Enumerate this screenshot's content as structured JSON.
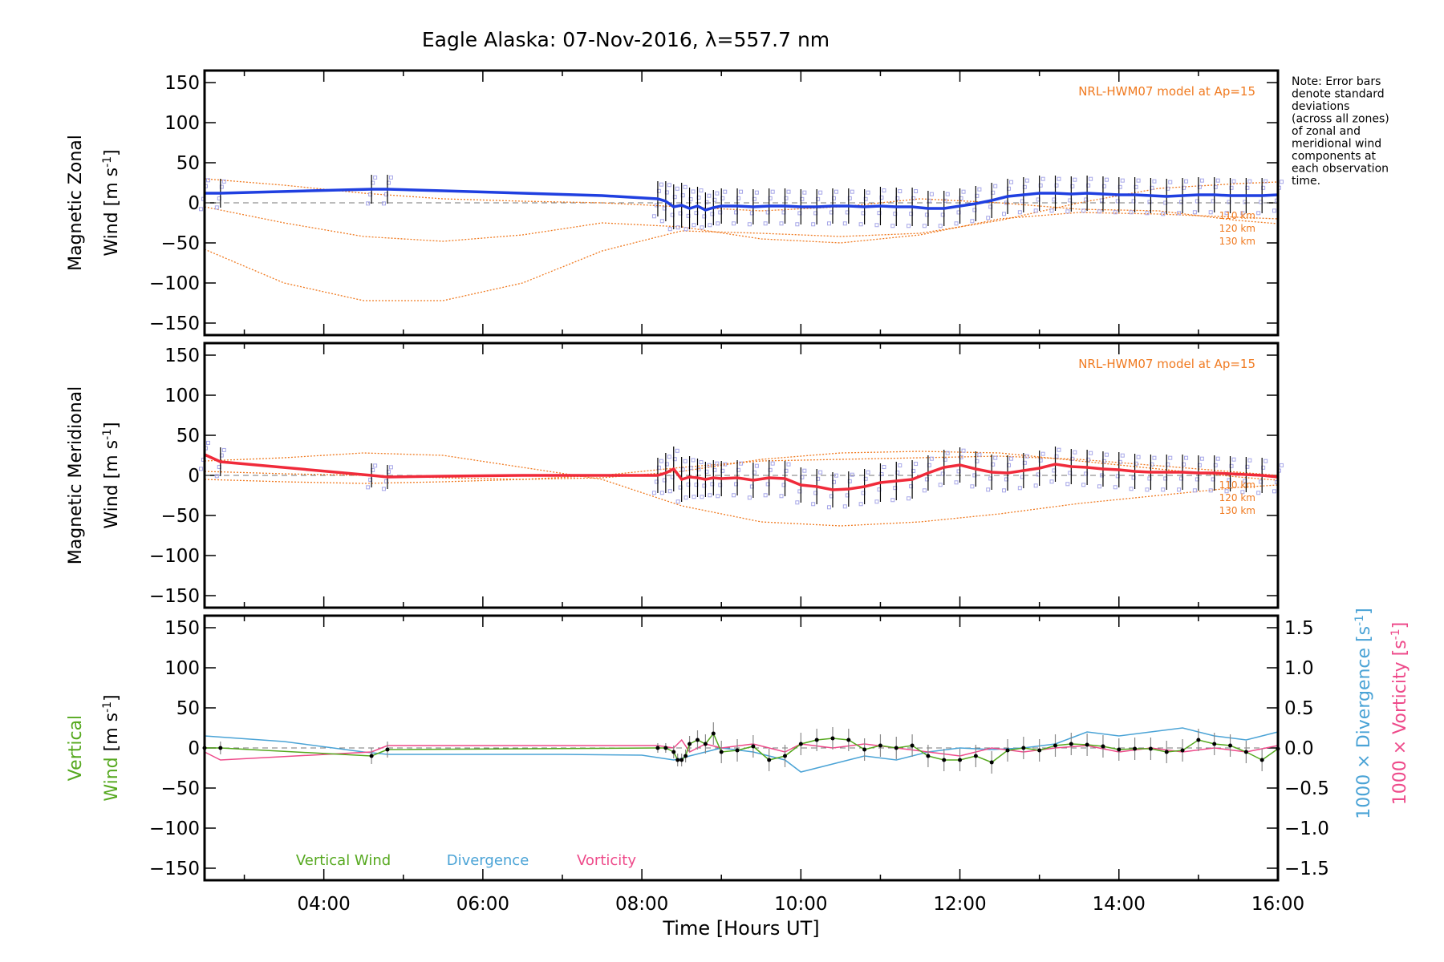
{
  "title": "Eagle Alaska: 07-Nov-2016, λ=557.7 nm",
  "note": [
    "Note: Error bars",
    "denote standard",
    "deviations",
    "(across all zones)",
    "of zonal and",
    "meridional wind",
    "components at",
    "each observation",
    "time."
  ],
  "colors": {
    "zonal": "#1f3fe0",
    "meridional": "#f02a3a",
    "model": "#f07a20",
    "vertical": "#55a81e",
    "divergence": "#4aa3d6",
    "vorticity": "#ee4a8a",
    "samples": "#a6a6e8",
    "errorbar": "#000000"
  },
  "xaxis": {
    "label": "Time [Hours UT]",
    "range": [
      2.5,
      16.0
    ],
    "ticks": [
      4,
      6,
      8,
      10,
      12,
      14,
      16
    ],
    "tick_labels": [
      "04:00",
      "06:00",
      "08:00",
      "10:00",
      "12:00",
      "14:00",
      "16:00"
    ]
  },
  "chart_data": [
    {
      "type": "line",
      "panel": "zonal",
      "ylabel_line1": "Magnetic Zonal",
      "ylabel_line2": "Wind [m s",
      "ylabel_sup": "-1",
      "ylabel_close": "]",
      "ylim": [
        -165,
        165
      ],
      "yticks": [
        -150,
        -100,
        -50,
        0,
        50,
        100,
        150
      ],
      "ytick_labels": [
        "−150",
        "−100",
        "−50",
        "0",
        "50",
        "100",
        "150"
      ],
      "model_label": "NRL-HWM07 model at Ap=15",
      "model_levels": [
        "110 km",
        "120 km",
        "130 km"
      ],
      "series": {
        "x": [
          2.5,
          2.7,
          4.6,
          4.8,
          5.5,
          6.5,
          7.5,
          8.2,
          8.3,
          8.4,
          8.5,
          8.6,
          8.7,
          8.8,
          8.9,
          9.0,
          9.2,
          9.4,
          9.6,
          9.8,
          10.0,
          10.2,
          10.4,
          10.6,
          10.8,
          11.0,
          11.2,
          11.4,
          11.6,
          11.8,
          12.0,
          12.2,
          12.4,
          12.6,
          12.8,
          13.0,
          13.2,
          13.4,
          13.6,
          13.8,
          14.0,
          14.2,
          14.4,
          14.6,
          14.8,
          15.0,
          15.2,
          15.4,
          15.6,
          15.8,
          16.0
        ],
        "y": [
          12,
          12,
          17,
          17,
          15,
          12,
          9,
          5,
          2,
          -5,
          -3,
          -7,
          -4,
          -9,
          -6,
          -4,
          -4,
          -5,
          -4,
          -4,
          -5,
          -5,
          -4,
          -4,
          -5,
          -4,
          -5,
          -5,
          -7,
          -7,
          -4,
          -1,
          3,
          8,
          10,
          12,
          12,
          11,
          12,
          11,
          10,
          10,
          9,
          8,
          9,
          10,
          10,
          9,
          9,
          9,
          10
        ],
        "err": [
          20,
          18,
          18,
          18,
          0,
          0,
          0,
          22,
          25,
          28,
          28,
          26,
          24,
          22,
          22,
          22,
          22,
          22,
          22,
          22,
          22,
          22,
          22,
          22,
          22,
          24,
          24,
          24,
          22,
          22,
          22,
          22,
          22,
          22,
          22,
          22,
          22,
          22,
          22,
          22,
          22,
          22,
          22,
          22,
          22,
          22,
          22,
          22,
          22,
          22,
          20
        ]
      },
      "model": [
        {
          "level": "110 km",
          "x": [
            2.5,
            3.5,
            4.5,
            5.5,
            6.5,
            7.5,
            8.5,
            9.5,
            10.5,
            11.5,
            12.5,
            13.5,
            14.5,
            15.5,
            16.0
          ],
          "y": [
            -58,
            -100,
            -122,
            -122,
            -100,
            -60,
            -35,
            -38,
            -42,
            -38,
            -22,
            0,
            18,
            24,
            26
          ]
        },
        {
          "level": "120 km",
          "x": [
            2.5,
            3.5,
            4.5,
            5.5,
            6.5,
            7.5,
            8.5,
            9.5,
            10.5,
            11.5,
            12.5,
            13.5,
            14.5,
            15.5,
            16.0
          ],
          "y": [
            -5,
            -25,
            -42,
            -48,
            -40,
            -25,
            -30,
            -45,
            -50,
            -40,
            -20,
            -12,
            -14,
            -18,
            -20
          ]
        },
        {
          "level": "130 km",
          "x": [
            2.5,
            3.5,
            4.5,
            5.5,
            6.5,
            7.5,
            8.5,
            9.5,
            10.5,
            11.5,
            12.5,
            13.5,
            14.5,
            15.5,
            16.0
          ],
          "y": [
            30,
            22,
            12,
            5,
            2,
            0,
            -5,
            -10,
            -5,
            5,
            0,
            -8,
            -10,
            -22,
            -26
          ]
        }
      ]
    },
    {
      "type": "line",
      "panel": "meridional",
      "ylabel_line1": "Magnetic Meridional",
      "ylabel_line2": "Wind [m s",
      "ylabel_sup": "-1",
      "ylabel_close": "]",
      "ylim": [
        -165,
        165
      ],
      "yticks": [
        -150,
        -100,
        -50,
        0,
        50,
        100,
        150
      ],
      "ytick_labels": [
        "−150",
        "−100",
        "−50",
        "0",
        "50",
        "100",
        "150"
      ],
      "model_label": "NRL-HWM07 model at Ap=15",
      "model_levels": [
        "110 km",
        "120 km",
        "130 km"
      ],
      "series": {
        "x": [
          2.5,
          2.7,
          4.6,
          4.8,
          5.5,
          6.5,
          7.5,
          8.2,
          8.3,
          8.4,
          8.5,
          8.6,
          8.7,
          8.8,
          8.9,
          9.0,
          9.2,
          9.4,
          9.6,
          9.8,
          10.0,
          10.2,
          10.4,
          10.6,
          10.8,
          11.0,
          11.2,
          11.4,
          11.6,
          11.8,
          12.0,
          12.2,
          12.4,
          12.6,
          12.8,
          13.0,
          13.2,
          13.4,
          13.6,
          13.8,
          14.0,
          14.2,
          14.4,
          14.6,
          14.8,
          15.0,
          15.2,
          15.4,
          15.6,
          15.8,
          16.0
        ],
        "y": [
          26,
          17,
          0,
          -2,
          -1,
          0,
          0,
          0,
          3,
          8,
          -5,
          -2,
          -3,
          -5,
          -3,
          -4,
          -3,
          -6,
          -3,
          -4,
          -12,
          -14,
          -18,
          -17,
          -14,
          -9,
          -7,
          -5,
          3,
          10,
          13,
          8,
          4,
          3,
          6,
          9,
          14,
          11,
          10,
          8,
          7,
          5,
          4,
          4,
          4,
          3,
          3,
          2,
          1,
          0,
          -2
        ],
        "err": [
          18,
          18,
          15,
          15,
          0,
          0,
          0,
          22,
          25,
          28,
          28,
          26,
          24,
          22,
          22,
          22,
          22,
          22,
          22,
          22,
          22,
          22,
          22,
          22,
          22,
          24,
          24,
          24,
          22,
          22,
          22,
          22,
          22,
          22,
          22,
          22,
          22,
          22,
          22,
          22,
          22,
          22,
          22,
          22,
          22,
          22,
          22,
          22,
          22,
          22,
          18
        ]
      },
      "model": [
        {
          "level": "110 km",
          "x": [
            2.5,
            3.5,
            4.5,
            5.5,
            6.5,
            7.5,
            8.5,
            9.5,
            10.5,
            11.5,
            12.5,
            13.5,
            14.5,
            15.5,
            16.0
          ],
          "y": [
            18,
            22,
            28,
            25,
            10,
            -5,
            -38,
            -58,
            -63,
            -58,
            -48,
            -35,
            -25,
            -15,
            -12
          ]
        },
        {
          "level": "120 km",
          "x": [
            2.5,
            3.5,
            4.5,
            5.5,
            6.5,
            7.5,
            8.5,
            9.5,
            10.5,
            11.5,
            12.5,
            13.5,
            14.5,
            15.5,
            16.0
          ],
          "y": [
            5,
            2,
            0,
            -3,
            -5,
            -3,
            5,
            20,
            28,
            30,
            28,
            18,
            8,
            -2,
            -6
          ]
        },
        {
          "level": "130 km",
          "x": [
            2.5,
            3.5,
            4.5,
            5.5,
            6.5,
            7.5,
            8.5,
            9.5,
            10.5,
            11.5,
            12.5,
            13.5,
            14.5,
            15.5,
            16.0
          ],
          "y": [
            -5,
            -8,
            -10,
            -8,
            -5,
            0,
            10,
            18,
            20,
            22,
            24,
            20,
            12,
            4,
            0
          ]
        }
      ]
    },
    {
      "type": "line",
      "panel": "vertical",
      "ylabel_line1": "Vertical",
      "ylabel_line2": "Wind [m s",
      "ylabel_sup": "-1",
      "ylabel_close": "]",
      "ylim": [
        -165,
        165
      ],
      "yticks": [
        -150,
        -100,
        -50,
        0,
        50,
        100,
        150
      ],
      "ytick_labels": [
        "−150",
        "−100",
        "−50",
        "0",
        "50",
        "100",
        "150"
      ],
      "y2label_div": "1000 × Divergence [s",
      "y2label_vor": "1000 × Vorticity [s",
      "y2label_sup": "-1",
      "y2label_close": "]",
      "y2lim": [
        -1.65,
        1.65
      ],
      "y2ticks": [
        -1.5,
        -1.0,
        -0.5,
        0.0,
        0.5,
        1.0,
        1.5
      ],
      "y2tick_labels": [
        "−1.5",
        "−1.0",
        "−0.5",
        "0.0",
        "0.5",
        "1.0",
        "1.5"
      ],
      "legend": [
        "Vertical Wind",
        "Divergence",
        "Vorticity"
      ],
      "vertical_wind": {
        "x": [
          2.5,
          2.7,
          4.6,
          4.8,
          8.2,
          8.3,
          8.4,
          8.45,
          8.5,
          8.55,
          8.6,
          8.7,
          8.8,
          8.9,
          9.0,
          9.2,
          9.4,
          9.6,
          9.8,
          10.0,
          10.2,
          10.4,
          10.6,
          10.8,
          11.0,
          11.2,
          11.4,
          11.6,
          11.8,
          12.0,
          12.2,
          12.4,
          12.6,
          12.8,
          13.0,
          13.2,
          13.4,
          13.6,
          13.8,
          14.0,
          14.2,
          14.4,
          14.6,
          14.8,
          15.0,
          15.2,
          15.4,
          15.6,
          15.8,
          16.0
        ],
        "y": [
          0,
          0,
          -10,
          -2,
          0,
          0,
          -5,
          -15,
          -15,
          -10,
          5,
          10,
          5,
          18,
          -5,
          -3,
          2,
          -15,
          -10,
          5,
          10,
          12,
          10,
          -2,
          3,
          0,
          3,
          -10,
          -15,
          -15,
          -10,
          -18,
          -3,
          0,
          -3,
          3,
          5,
          4,
          2,
          -2,
          -1,
          -1,
          -5,
          -3,
          10,
          5,
          3,
          -5,
          -15,
          -1
        ],
        "err": [
          8,
          8,
          10,
          10,
          6,
          6,
          8,
          8,
          8,
          8,
          10,
          12,
          12,
          14,
          14,
          14,
          14,
          14,
          14,
          14,
          14,
          14,
          14,
          14,
          14,
          14,
          14,
          14,
          14,
          14,
          14,
          14,
          14,
          14,
          14,
          14,
          14,
          14,
          14,
          14,
          14,
          14,
          14,
          14,
          14,
          14,
          14,
          14,
          14,
          10
        ]
      },
      "divergence": {
        "x": [
          2.5,
          3.5,
          4.5,
          4.8,
          6.0,
          7.0,
          8.0,
          8.2,
          8.4,
          8.5,
          8.6,
          8.8,
          9.0,
          9.4,
          9.8,
          10.0,
          10.4,
          10.8,
          11.2,
          11.6,
          12.0,
          12.4,
          12.8,
          13.2,
          13.6,
          14.0,
          14.4,
          14.8,
          15.2,
          15.6,
          16.0
        ],
        "y": [
          0.15,
          0.08,
          -0.05,
          -0.08,
          -0.08,
          -0.08,
          -0.09,
          -0.12,
          -0.15,
          -0.13,
          -0.1,
          -0.05,
          0.0,
          -0.05,
          -0.15,
          -0.3,
          -0.2,
          -0.1,
          -0.15,
          -0.05,
          0.0,
          -0.02,
          0.0,
          0.05,
          0.2,
          0.15,
          0.2,
          0.25,
          0.15,
          0.1,
          0.2
        ]
      },
      "vorticity": {
        "x": [
          2.5,
          2.7,
          4.6,
          4.8,
          6.0,
          7.0,
          8.0,
          8.2,
          8.4,
          8.5,
          8.6,
          8.8,
          9.0,
          9.4,
          9.8,
          10.0,
          10.4,
          10.8,
          11.2,
          11.6,
          12.0,
          12.4,
          12.8,
          13.2,
          13.6,
          14.0,
          14.4,
          14.8,
          15.2,
          15.6,
          16.0
        ],
        "y": [
          -0.05,
          -0.15,
          -0.05,
          0.03,
          0.03,
          0.03,
          0.03,
          0.03,
          0.0,
          0.1,
          -0.05,
          0.05,
          0.0,
          0.05,
          -0.05,
          0.05,
          0.0,
          0.05,
          0.0,
          -0.05,
          -0.1,
          0.0,
          -0.05,
          0.0,
          0.03,
          -0.05,
          0.0,
          -0.05,
          0.0,
          -0.05,
          0.03
        ]
      }
    }
  ]
}
